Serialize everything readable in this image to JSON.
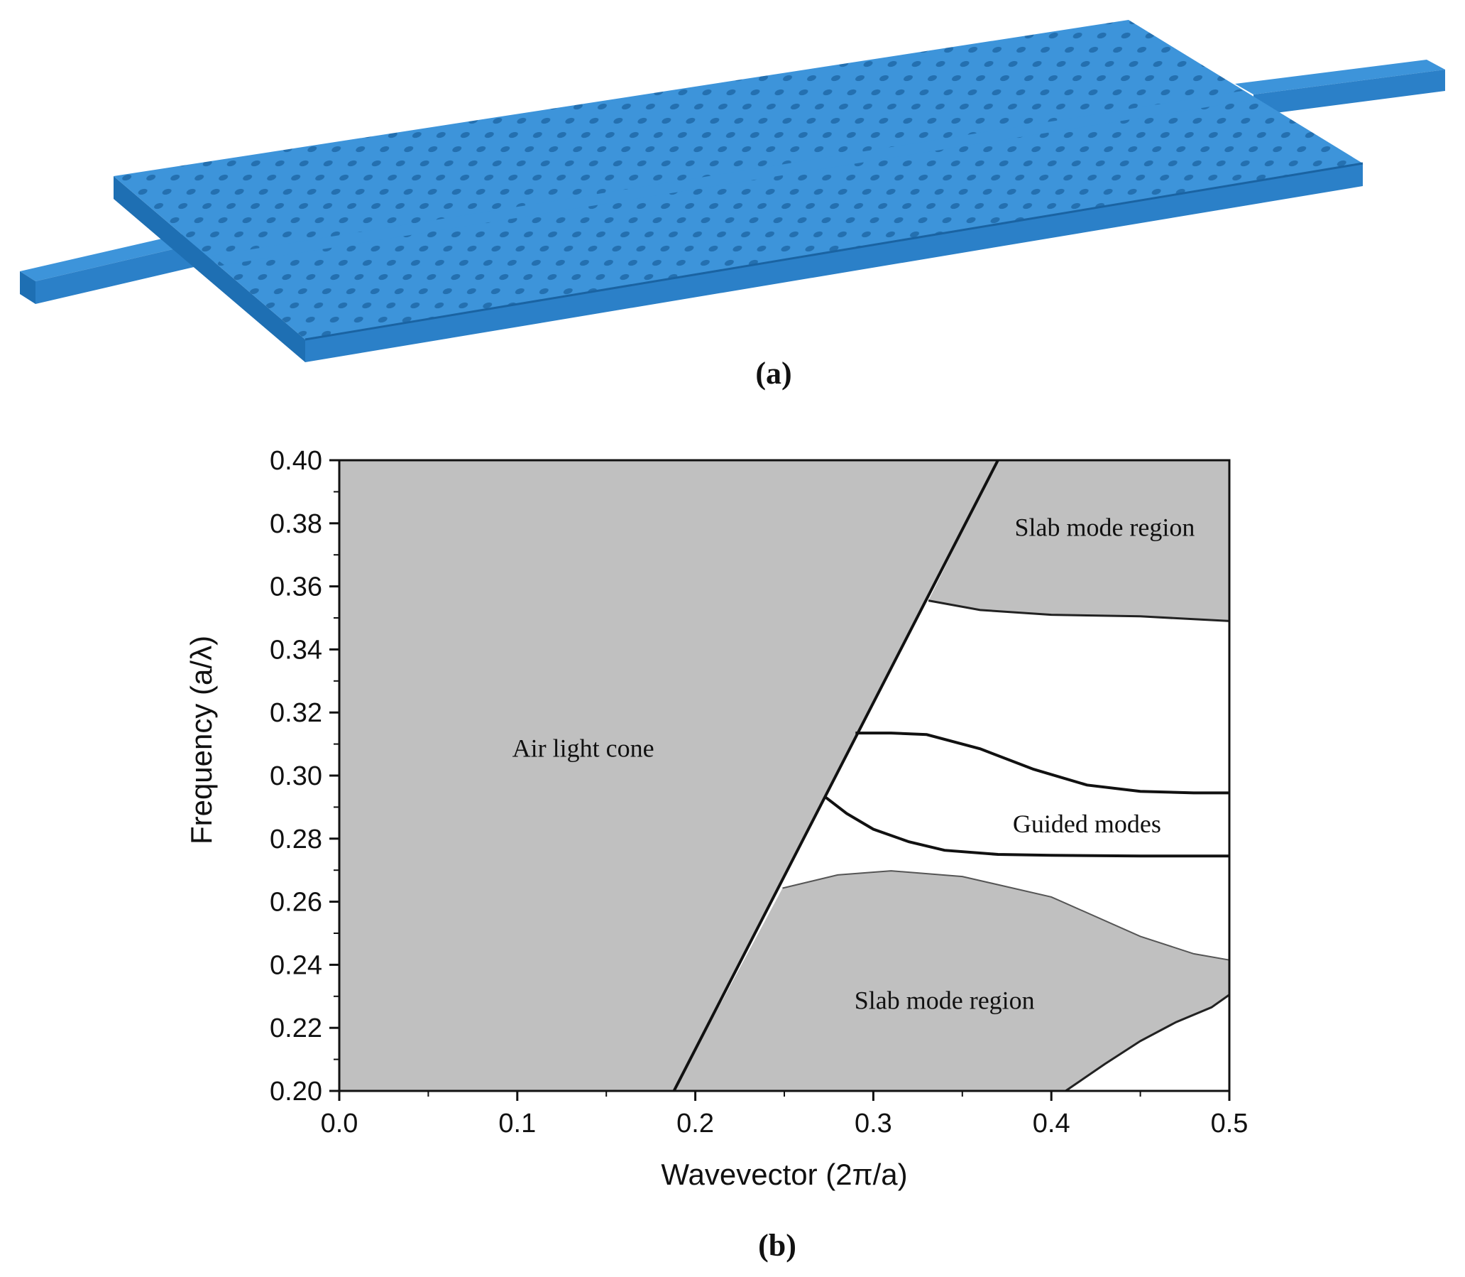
{
  "panels": {
    "a_label": "(a)",
    "b_label": "(b)"
  },
  "device_illustration": {
    "description_icon": "photonic-crystal-waveguide-icon",
    "slab_color": "#3a8fd4",
    "slab_top_color": "#3d94da",
    "slab_side_color": "#1e6fb3",
    "hole_color": "#2a7dc4"
  },
  "chart_data": {
    "type": "area",
    "title": "",
    "xlabel": "Wavevector (2π/a)",
    "ylabel": "Frequency (a/λ)",
    "xlim": [
      0.0,
      0.5
    ],
    "ylim": [
      0.2,
      0.4
    ],
    "x_ticks": [
      "0.0",
      "0.1",
      "0.2",
      "0.3",
      "0.4",
      "0.5"
    ],
    "y_ticks": [
      "0.20",
      "0.22",
      "0.24",
      "0.26",
      "0.28",
      "0.30",
      "0.32",
      "0.34",
      "0.36",
      "0.38",
      "0.40"
    ],
    "fill_color": "#c0c0c0",
    "light_line": {
      "x": [
        0.188,
        0.37
      ],
      "y": [
        0.2,
        0.4
      ]
    },
    "regions": [
      {
        "label": "Air light cone",
        "label_at": [
          0.137,
          0.306
        ]
      },
      {
        "label": "Slab mode region",
        "label_at": [
          0.43,
          0.376
        ]
      },
      {
        "label": "Guided modes",
        "label_at": [
          0.42,
          0.282
        ]
      },
      {
        "label": "Slab mode region",
        "label_at": [
          0.34,
          0.226
        ]
      }
    ],
    "upper_slab_edge": {
      "x": [
        0.331,
        0.36,
        0.4,
        0.45,
        0.5
      ],
      "y": [
        0.3555,
        0.3525,
        0.351,
        0.3505,
        0.349
      ]
    },
    "lower_slab_edge": {
      "x": [
        0.249,
        0.28,
        0.31,
        0.35,
        0.4,
        0.45,
        0.48,
        0.5
      ],
      "y": [
        0.2643,
        0.2685,
        0.2698,
        0.268,
        0.2615,
        0.249,
        0.2435,
        0.2415
      ]
    },
    "lower_gap_curve": {
      "x": [
        0.408,
        0.43,
        0.45,
        0.47,
        0.49,
        0.5
      ],
      "y": [
        0.2,
        0.2085,
        0.2158,
        0.2218,
        0.2265,
        0.2305
      ]
    },
    "series": [
      {
        "x": [
          0.29,
          0.31,
          0.33,
          0.36,
          0.39,
          0.42,
          0.45,
          0.48,
          0.5
        ],
        "y": [
          0.3135,
          0.3135,
          0.313,
          0.3085,
          0.302,
          0.297,
          0.295,
          0.2945,
          0.2945
        ]
      },
      {
        "x": [
          0.273,
          0.285,
          0.3,
          0.32,
          0.34,
          0.37,
          0.4,
          0.45,
          0.5
        ],
        "y": [
          0.2932,
          0.288,
          0.283,
          0.279,
          0.2763,
          0.275,
          0.2747,
          0.2745,
          0.2745
        ]
      }
    ]
  }
}
